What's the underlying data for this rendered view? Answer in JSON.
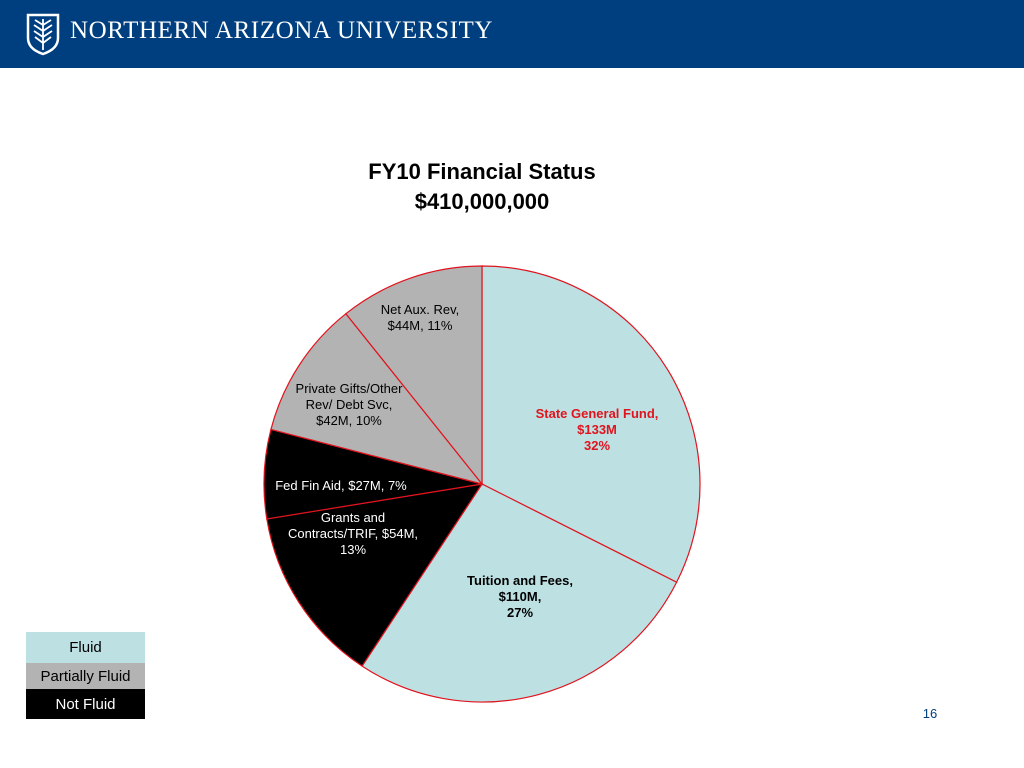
{
  "header": {
    "university_name": "NORTHERN ARIZONA UNIVERSITY"
  },
  "chart_data": {
    "type": "pie",
    "title": "FY10 Financial Status",
    "subtitle": "$410,000,000",
    "slices": [
      {
        "label_lines": [
          "State General Fund,",
          "$133M",
          "32%"
        ],
        "value": 133,
        "percent": 32,
        "category": "Fluid"
      },
      {
        "label_lines": [
          "Tuition and Fees,",
          "$110M,",
          "27%"
        ],
        "value": 110,
        "percent": 27,
        "category": "Fluid"
      },
      {
        "label_lines": [
          "Grants and",
          "Contracts/TRIF, $54M,",
          "13%"
        ],
        "value": 54,
        "percent": 13,
        "category": "Not Fluid"
      },
      {
        "label_lines": [
          "Fed Fin Aid, $27M, 7%"
        ],
        "value": 27,
        "percent": 7,
        "category": "Not Fluid"
      },
      {
        "label_lines": [
          "Private Gifts/Other",
          "Rev/ Debt Svc,",
          "$42M, 10%"
        ],
        "value": 42,
        "percent": 10,
        "category": "Partially Fluid"
      },
      {
        "label_lines": [
          "Net Aux. Rev,",
          "$44M, 11%"
        ],
        "value": 44,
        "percent": 11,
        "category": "Partially Fluid"
      }
    ],
    "legend": [
      {
        "label": "Fluid",
        "color": "#bde0e3",
        "text_color": "#000000"
      },
      {
        "label": "Partially Fluid",
        "color": "#b3b3b3",
        "text_color": "#000000"
      },
      {
        "label": "Not Fluid",
        "color": "#000000",
        "text_color": "#ffffff"
      }
    ],
    "colors": {
      "Fluid": "#bde0e3",
      "Partially Fluid": "#b3b3b3",
      "Not Fluid": "#000000",
      "slice_border": "#e0141e",
      "highlight_label": "#e0141e"
    }
  },
  "page": {
    "number": "16"
  }
}
